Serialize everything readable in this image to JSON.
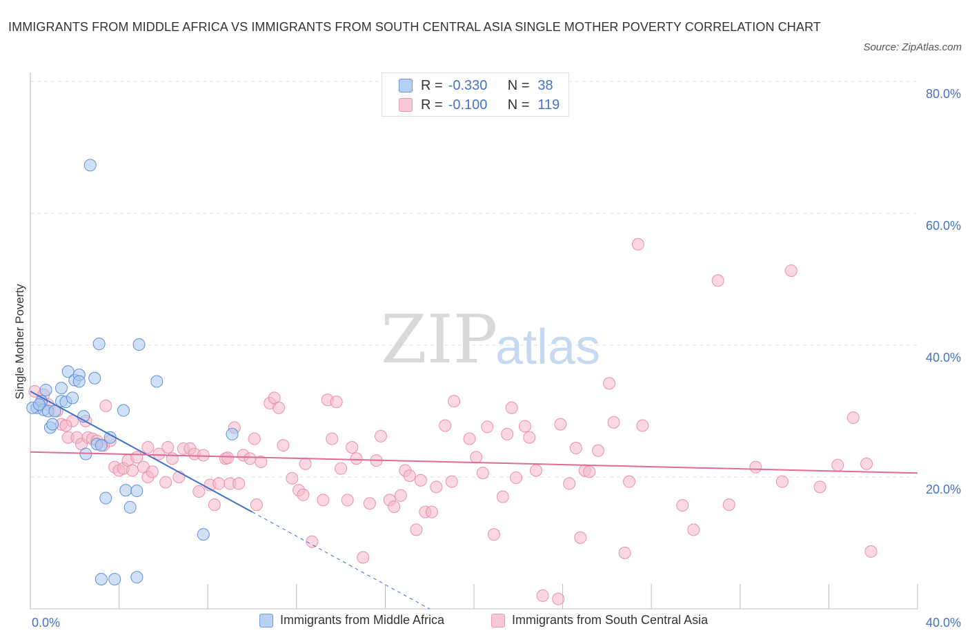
{
  "title": "IMMIGRANTS FROM MIDDLE AFRICA VS IMMIGRANTS FROM SOUTH CENTRAL ASIA SINGLE MOTHER POVERTY CORRELATION CHART",
  "source": "Source: ZipAtlas.com",
  "watermark": {
    "zip": "ZIP",
    "atlas": "atlas"
  },
  "colors": {
    "blue": "#4472c4",
    "blue_fill": "#aac8f0",
    "pink": "#e06890",
    "pink_fill": "#f5b6c9"
  },
  "legend": {
    "series1": {
      "r_label": "R =",
      "r_value": "-0.330",
      "n_label": "N =",
      "n_value": "38"
    },
    "series2": {
      "r_label": "R =",
      "r_value": "-0.100",
      "n_label": "N =",
      "n_value": "119"
    }
  },
  "bottom_legend": {
    "series1": "Immigrants from Middle Africa",
    "series2": "Immigrants from South Central Asia"
  },
  "chart_data": {
    "type": "scatter",
    "title": "IMMIGRANTS FROM MIDDLE AFRICA VS IMMIGRANTS FROM SOUTH CENTRAL ASIA SINGLE MOTHER POVERTY CORRELATION CHART",
    "ylabel": "Single Mother Poverty",
    "xlabel": "",
    "xlim": [
      0,
      40
    ],
    "ylim": [
      0,
      80
    ],
    "x_tick_labels": [
      "0.0%",
      "40.0%"
    ],
    "y_tick_labels": [
      "20.0%",
      "40.0%",
      "60.0%",
      "80.0%"
    ],
    "y_ticks": [
      20,
      40,
      60,
      80
    ],
    "grid": true,
    "legend_position": "top-center",
    "series": [
      {
        "name": "Immigrants from Middle Africa",
        "color": "#4472c4",
        "r": -0.33,
        "n": 38,
        "trend": {
          "x": [
            0,
            10
          ],
          "y": [
            33.0,
            14.7
          ],
          "dash_to": [
            18,
            0
          ]
        },
        "points": [
          [
            0.3,
            30.5
          ],
          [
            0.5,
            31.5
          ],
          [
            0.6,
            30.2
          ],
          [
            0.7,
            33.2
          ],
          [
            0.8,
            30.0
          ],
          [
            0.9,
            27.5
          ],
          [
            1.0,
            28.0
          ],
          [
            1.1,
            30.0
          ],
          [
            1.4,
            33.5
          ],
          [
            1.4,
            31.5
          ],
          [
            1.6,
            31.4
          ],
          [
            1.7,
            36.0
          ],
          [
            1.9,
            32.0
          ],
          [
            2.0,
            34.7
          ],
          [
            2.2,
            35.5
          ],
          [
            2.2,
            34.5
          ],
          [
            2.4,
            29.2
          ],
          [
            2.5,
            23.5
          ],
          [
            2.7,
            67.3
          ],
          [
            2.9,
            35.0
          ],
          [
            3.0,
            25.0
          ],
          [
            3.1,
            40.2
          ],
          [
            3.2,
            4.5
          ],
          [
            3.2,
            24.8
          ],
          [
            3.4,
            16.8
          ],
          [
            3.6,
            26.0
          ],
          [
            3.8,
            4.5
          ],
          [
            4.2,
            30.1
          ],
          [
            4.3,
            18.0
          ],
          [
            4.5,
            15.4
          ],
          [
            4.8,
            17.9
          ],
          [
            4.8,
            4.8
          ],
          [
            4.9,
            40.1
          ],
          [
            5.7,
            34.5
          ],
          [
            7.8,
            11.3
          ],
          [
            9.1,
            26.5
          ],
          [
            0.1,
            30.5
          ],
          [
            0.4,
            31.0
          ]
        ]
      },
      {
        "name": "Immigrants from South Central Asia",
        "color": "#e06890",
        "r": -0.1,
        "n": 119,
        "trend": {
          "x": [
            0,
            40
          ],
          "y": [
            23.8,
            20.6
          ]
        },
        "points": [
          [
            0.2,
            33.0
          ],
          [
            0.5,
            31.5
          ],
          [
            0.8,
            31.0
          ],
          [
            1.2,
            30.0
          ],
          [
            1.4,
            28.0
          ],
          [
            1.7,
            26.0
          ],
          [
            1.9,
            28.5
          ],
          [
            2.1,
            26.0
          ],
          [
            2.3,
            25.0
          ],
          [
            2.5,
            28.5
          ],
          [
            2.6,
            26.0
          ],
          [
            2.8,
            25.8
          ],
          [
            3.0,
            25.5
          ],
          [
            3.3,
            24.8
          ],
          [
            3.4,
            30.8
          ],
          [
            3.6,
            25.5
          ],
          [
            3.8,
            21.5
          ],
          [
            4.0,
            21.0
          ],
          [
            4.2,
            21.3
          ],
          [
            4.4,
            22.5
          ],
          [
            4.6,
            21.0
          ],
          [
            4.8,
            23.0
          ],
          [
            5.1,
            21.5
          ],
          [
            5.3,
            20.0
          ],
          [
            5.5,
            20.8
          ],
          [
            5.8,
            23.5
          ],
          [
            6.1,
            19.2
          ],
          [
            6.2,
            24.5
          ],
          [
            6.4,
            22.8
          ],
          [
            6.7,
            20.0
          ],
          [
            6.9,
            24.3
          ],
          [
            7.2,
            24.3
          ],
          [
            7.4,
            23.5
          ],
          [
            7.6,
            17.8
          ],
          [
            7.8,
            23.3
          ],
          [
            8.1,
            18.8
          ],
          [
            8.3,
            15.8
          ],
          [
            8.5,
            19.0
          ],
          [
            8.8,
            22.8
          ],
          [
            9.0,
            19.0
          ],
          [
            9.2,
            27.5
          ],
          [
            9.4,
            19.0
          ],
          [
            9.6,
            23.3
          ],
          [
            9.9,
            22.8
          ],
          [
            10.1,
            25.8
          ],
          [
            10.2,
            15.8
          ],
          [
            10.4,
            22.3
          ],
          [
            10.8,
            31.2
          ],
          [
            11.0,
            32.0
          ],
          [
            11.2,
            30.5
          ],
          [
            11.4,
            24.8
          ],
          [
            11.8,
            19.8
          ],
          [
            12.1,
            18.0
          ],
          [
            12.3,
            17.3
          ],
          [
            12.4,
            22.0
          ],
          [
            12.7,
            10.2
          ],
          [
            13.2,
            16.5
          ],
          [
            13.4,
            31.7
          ],
          [
            13.6,
            25.8
          ],
          [
            13.8,
            31.4
          ],
          [
            14.0,
            21.3
          ],
          [
            14.3,
            16.5
          ],
          [
            14.5,
            24.5
          ],
          [
            14.7,
            22.8
          ],
          [
            15.0,
            7.8
          ],
          [
            15.3,
            16.0
          ],
          [
            15.6,
            22.5
          ],
          [
            15.8,
            26.2
          ],
          [
            16.2,
            16.5
          ],
          [
            16.4,
            15.5
          ],
          [
            16.7,
            17.2
          ],
          [
            16.9,
            21.0
          ],
          [
            17.1,
            20.2
          ],
          [
            17.4,
            12.0
          ],
          [
            17.6,
            19.5
          ],
          [
            17.8,
            14.7
          ],
          [
            18.1,
            14.7
          ],
          [
            18.3,
            18.5
          ],
          [
            18.7,
            27.8
          ],
          [
            19.0,
            19.3
          ],
          [
            19.1,
            31.5
          ],
          [
            19.8,
            25.8
          ],
          [
            20.1,
            23.0
          ],
          [
            20.4,
            20.6
          ],
          [
            20.6,
            27.6
          ],
          [
            20.9,
            11.3
          ],
          [
            21.3,
            17.0
          ],
          [
            21.5,
            26.5
          ],
          [
            21.7,
            30.5
          ],
          [
            21.9,
            19.9
          ],
          [
            22.3,
            27.7
          ],
          [
            22.5,
            26.0
          ],
          [
            22.8,
            21.0
          ],
          [
            23.1,
            2.0
          ],
          [
            23.8,
            1.5
          ],
          [
            23.9,
            28.0
          ],
          [
            24.3,
            19.0
          ],
          [
            24.8,
            10.8
          ],
          [
            25.0,
            21.0
          ],
          [
            25.2,
            20.8
          ],
          [
            25.6,
            24.0
          ],
          [
            26.1,
            34.2
          ],
          [
            26.8,
            8.5
          ],
          [
            27.0,
            19.3
          ],
          [
            27.4,
            55.3
          ],
          [
            27.6,
            27.8
          ],
          [
            29.4,
            15.7
          ],
          [
            29.9,
            12.0
          ],
          [
            31.0,
            49.8
          ],
          [
            31.5,
            15.8
          ],
          [
            32.7,
            21.5
          ],
          [
            33.9,
            19.3
          ],
          [
            34.3,
            51.3
          ],
          [
            35.6,
            18.5
          ],
          [
            36.4,
            21.8
          ],
          [
            37.1,
            29.0
          ],
          [
            37.7,
            22.0
          ],
          [
            37.9,
            8.7
          ],
          [
            0.6,
            32.5
          ],
          [
            1.6,
            27.8
          ],
          [
            5.3,
            24.5
          ],
          [
            8.9,
            22.9
          ],
          [
            26.3,
            28.3
          ],
          [
            24.6,
            24.4
          ]
        ]
      }
    ]
  }
}
